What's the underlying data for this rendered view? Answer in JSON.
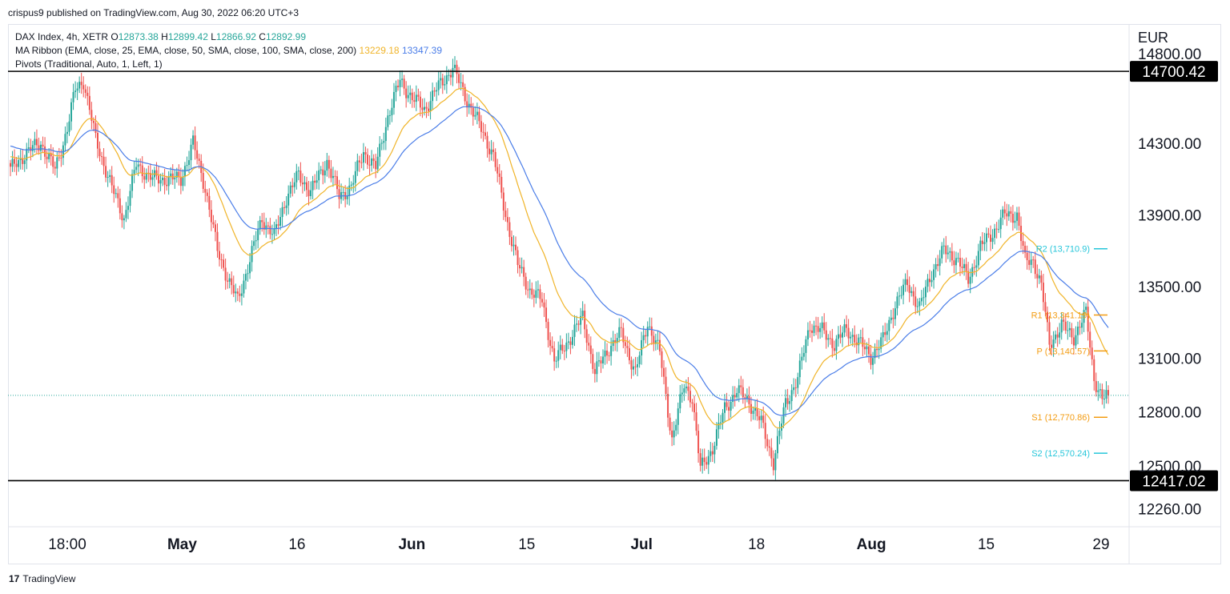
{
  "header": {
    "published_by": "crispus9 published on TradingView.com, Aug 30, 2022 06:20 UTC+3"
  },
  "legend": {
    "symbol": "DAX Index, 4h, XETR",
    "ohlc": [
      {
        "k": "O",
        "v": "12873.38"
      },
      {
        "k": "H",
        "v": "12899.42"
      },
      {
        "k": "L",
        "v": "12866.92"
      },
      {
        "k": "C",
        "v": "12892.99"
      }
    ],
    "ma_label": "MA Ribbon (EMA, close, 25, EMA, close, 50, SMA, close, 100, SMA, close, 200)",
    "ma_values": [
      "13229.18",
      "13347.39"
    ],
    "pivots_label": "Pivots (Traditional, Auto, 1, Left, 1)"
  },
  "footer": {
    "brand": "TradingView",
    "logo": "17"
  },
  "colors": {
    "up": "#26a69a",
    "down": "#ef5350",
    "ema25": "#f0b429",
    "ema50": "#4a7de8",
    "pivot_teal": "#26c6da",
    "pivot_orange": "#f39c12",
    "level": "#000000"
  },
  "chart_data": {
    "type": "candlestick",
    "currency": "EUR",
    "y_range": [
      12160,
      14960
    ],
    "y_ticks": [
      {
        "value": 14800,
        "label": "14800.00"
      },
      {
        "value": 14300,
        "label": "14300.00"
      },
      {
        "value": 13900,
        "label": "13900.00"
      },
      {
        "value": 13500,
        "label": "13500.00"
      },
      {
        "value": 13100,
        "label": "13100.00"
      },
      {
        "value": 12800,
        "label": "12800.00"
      },
      {
        "value": 12500,
        "label": "12500.00"
      },
      {
        "value": 12260,
        "label": "12260.00"
      }
    ],
    "x_ticks": [
      {
        "label": "18:00",
        "bold": false
      },
      {
        "label": "May",
        "bold": true
      },
      {
        "label": "16",
        "bold": false
      },
      {
        "label": "Jun",
        "bold": true
      },
      {
        "label": "15",
        "bold": false
      },
      {
        "label": "Jul",
        "bold": true
      },
      {
        "label": "18",
        "bold": false
      },
      {
        "label": "Aug",
        "bold": true
      },
      {
        "label": "15",
        "bold": false
      },
      {
        "label": "29",
        "bold": false
      }
    ],
    "horizontal_levels": [
      {
        "value": 14700.42,
        "label": "14700.42"
      },
      {
        "value": 12417.02,
        "label": "12417.02"
      }
    ],
    "current_price": 12892.99,
    "pivots": [
      {
        "name": "R2",
        "value": 13710.9,
        "label": "R2 (13,710.9)",
        "color": "teal"
      },
      {
        "name": "R1",
        "value": 13341.19,
        "label": "R1 (13,341.19)",
        "color": "orange"
      },
      {
        "name": "P",
        "value": 13140.57,
        "label": "P (13,140.57)",
        "color": "orange"
      },
      {
        "name": "S1",
        "value": 12770.86,
        "label": "S1 (12,770.86)",
        "color": "orange"
      },
      {
        "name": "S2",
        "value": 12570.24,
        "label": "S2 (12,570.24)",
        "color": "teal"
      }
    ],
    "series": [
      {
        "name": "EMA 25",
        "color": "ema25"
      },
      {
        "name": "EMA 50",
        "color": "ema50"
      },
      {
        "name": "DAX Index",
        "close_waypoints": [
          [
            0,
            14150
          ],
          [
            8,
            14250
          ],
          [
            15,
            14300
          ],
          [
            22,
            14150
          ],
          [
            28,
            14380
          ],
          [
            32,
            14600
          ],
          [
            36,
            14650
          ],
          [
            42,
            14320
          ],
          [
            50,
            14050
          ],
          [
            56,
            13880
          ],
          [
            62,
            14180
          ],
          [
            70,
            14100
          ],
          [
            78,
            14100
          ],
          [
            84,
            14100
          ],
          [
            90,
            14300
          ],
          [
            96,
            14050
          ],
          [
            102,
            13700
          ],
          [
            108,
            13520
          ],
          [
            112,
            13420
          ],
          [
            118,
            13650
          ],
          [
            124,
            13880
          ],
          [
            130,
            13780
          ],
          [
            136,
            14000
          ],
          [
            142,
            14120
          ],
          [
            148,
            14030
          ],
          [
            156,
            14200
          ],
          [
            162,
            14000
          ],
          [
            168,
            14060
          ],
          [
            174,
            14250
          ],
          [
            180,
            14160
          ],
          [
            186,
            14450
          ],
          [
            192,
            14650
          ],
          [
            198,
            14550
          ],
          [
            204,
            14490
          ],
          [
            210,
            14600
          ],
          [
            218,
            14720
          ],
          [
            225,
            14540
          ],
          [
            232,
            14380
          ],
          [
            238,
            14230
          ],
          [
            244,
            13900
          ],
          [
            250,
            13620
          ],
          [
            256,
            13480
          ],
          [
            262,
            13420
          ],
          [
            268,
            13080
          ],
          [
            275,
            13200
          ],
          [
            282,
            13330
          ],
          [
            288,
            13020
          ],
          [
            295,
            13160
          ],
          [
            301,
            13240
          ],
          [
            308,
            13020
          ],
          [
            314,
            13300
          ],
          [
            320,
            13130
          ],
          [
            326,
            12650
          ],
          [
            332,
            12950
          ],
          [
            336,
            12880
          ],
          [
            340,
            12480
          ],
          [
            346,
            12600
          ],
          [
            352,
            12820
          ],
          [
            358,
            12920
          ],
          [
            364,
            12860
          ],
          [
            370,
            12740
          ],
          [
            376,
            12520
          ],
          [
            382,
            12850
          ],
          [
            388,
            12990
          ],
          [
            394,
            13290
          ],
          [
            400,
            13250
          ],
          [
            406,
            13180
          ],
          [
            412,
            13260
          ],
          [
            418,
            13190
          ],
          [
            424,
            13110
          ],
          [
            430,
            13200
          ],
          [
            436,
            13400
          ],
          [
            442,
            13520
          ],
          [
            448,
            13380
          ],
          [
            454,
            13580
          ],
          [
            460,
            13700
          ],
          [
            466,
            13660
          ],
          [
            472,
            13540
          ],
          [
            478,
            13720
          ],
          [
            484,
            13800
          ],
          [
            490,
            13900
          ],
          [
            496,
            13900
          ],
          [
            500,
            13640
          ],
          [
            504,
            13650
          ],
          [
            508,
            13500
          ],
          [
            512,
            13180
          ],
          [
            518,
            13280
          ],
          [
            524,
            13220
          ],
          [
            530,
            13350
          ],
          [
            534,
            12990
          ],
          [
            538,
            12870
          ],
          [
            541,
            12893
          ]
        ]
      }
    ]
  }
}
